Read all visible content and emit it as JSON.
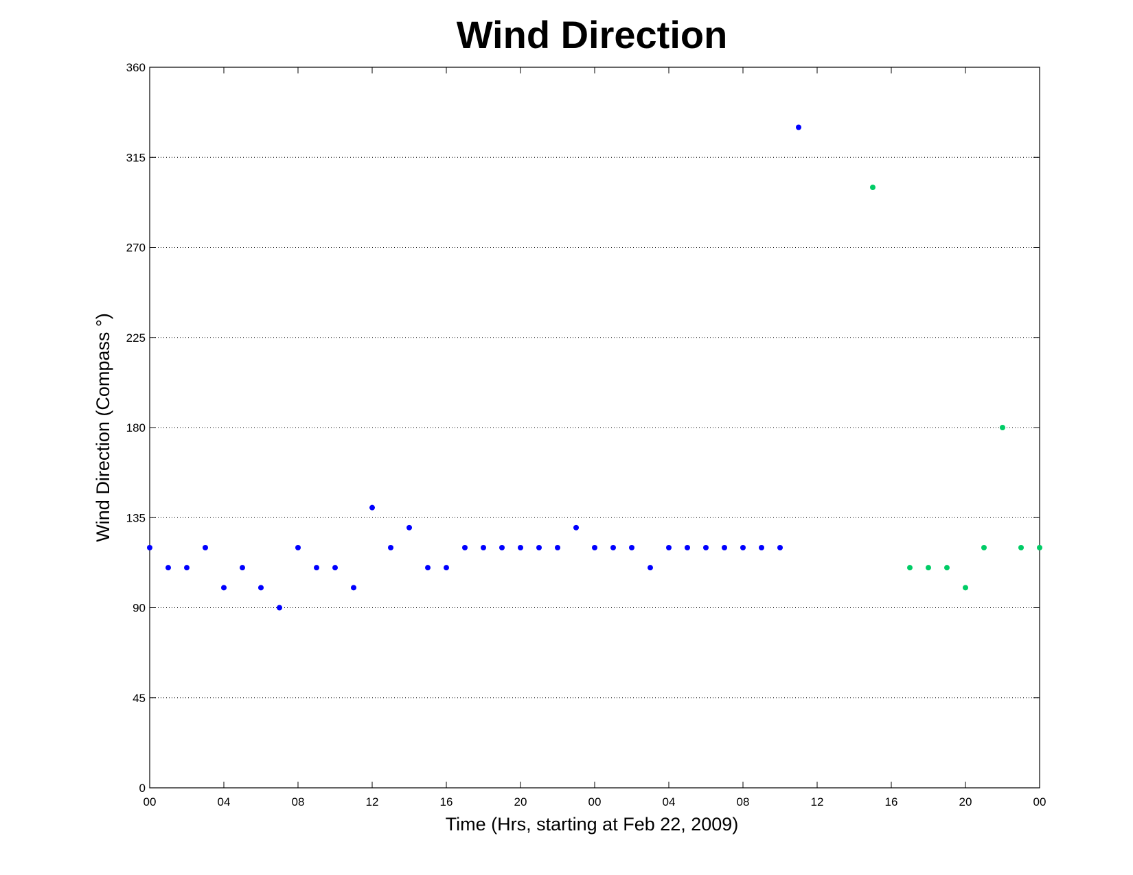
{
  "chart_data": {
    "type": "scatter",
    "title": "Wind Direction",
    "xlabel": "Time (Hrs, starting at Feb 22, 2009)",
    "ylabel": "Wind Direction (Compass  °)",
    "xlim": [
      0,
      48
    ],
    "ylim": [
      0,
      360
    ],
    "x_tick_values": [
      0,
      4,
      8,
      12,
      16,
      20,
      24,
      28,
      32,
      36,
      40,
      44,
      48
    ],
    "x_tick_labels": [
      "00",
      "04",
      "08",
      "12",
      "16",
      "20",
      "00",
      "04",
      "08",
      "12",
      "16",
      "20",
      "00"
    ],
    "y_ticks": [
      0,
      45,
      90,
      135,
      180,
      225,
      270,
      315,
      360
    ],
    "grid": "y-dotted",
    "series": [
      {
        "color": "#0000ff",
        "x": [
          0,
          1,
          2,
          3,
          4,
          5,
          6,
          7,
          8,
          9,
          10,
          11,
          12,
          13,
          14,
          15,
          16,
          17,
          18,
          19,
          20,
          21,
          22,
          23,
          24,
          25,
          26,
          27,
          28,
          29,
          30,
          31,
          32,
          33,
          34,
          35
        ],
        "y": [
          120,
          110,
          110,
          120,
          100,
          110,
          100,
          90,
          120,
          110,
          110,
          100,
          140,
          120,
          130,
          110,
          110,
          120,
          120,
          120,
          120,
          120,
          120,
          130,
          120,
          120,
          120,
          110,
          120,
          120,
          120,
          120,
          120,
          120,
          120,
          330
        ]
      },
      {
        "color": "#00cc66",
        "x": [
          39,
          41,
          42,
          43,
          44,
          45,
          46,
          47,
          48
        ],
        "y": [
          300,
          110,
          110,
          110,
          100,
          120,
          180,
          120,
          120
        ]
      }
    ]
  }
}
